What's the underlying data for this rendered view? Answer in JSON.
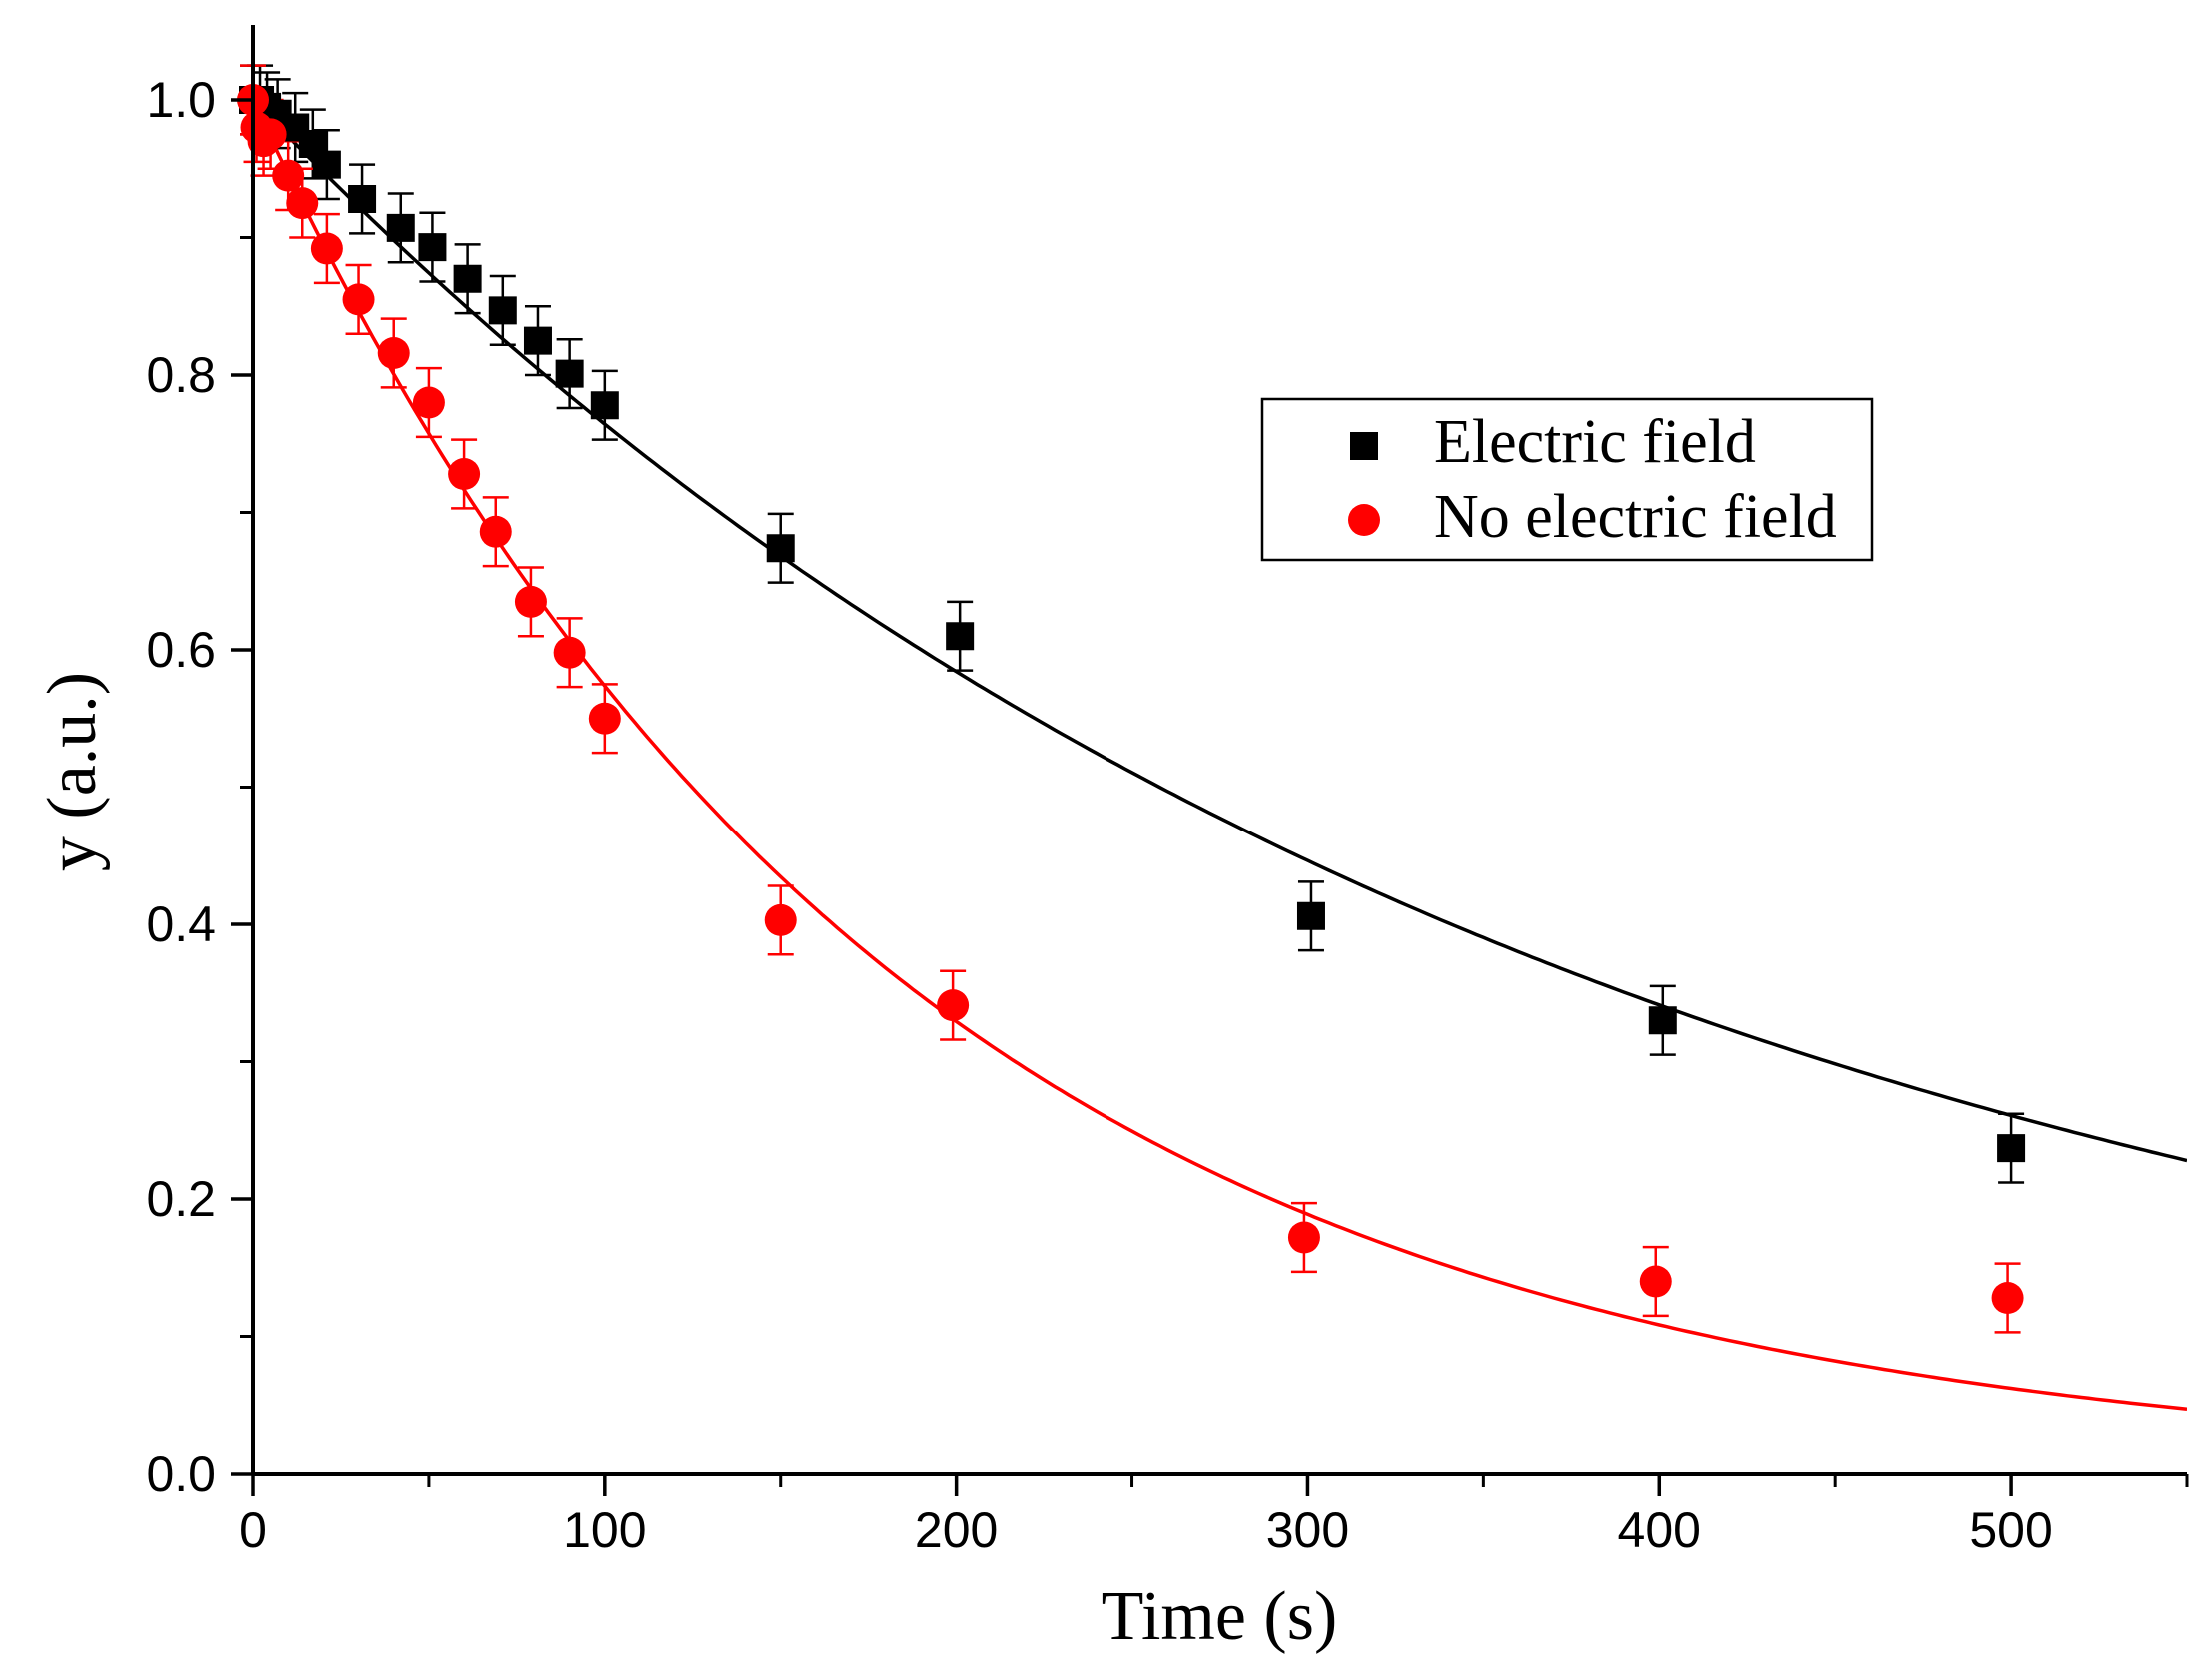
{
  "chart_data": {
    "type": "scatter",
    "title": "",
    "xlabel": "Time (s)",
    "ylabel": "y (a.u.)",
    "xlim": [
      0,
      550
    ],
    "ylim": [
      0,
      1.0
    ],
    "x_major_ticks": [
      0,
      100,
      200,
      300,
      400,
      500
    ],
    "x_minor_ticks": [
      50,
      150,
      250,
      350,
      450,
      550
    ],
    "x_tick_labels": [
      "0",
      "100",
      "200",
      "300",
      "400",
      "500"
    ],
    "y_major_ticks": [
      0,
      0.2,
      0.4,
      0.6,
      0.8,
      1.0
    ],
    "y_minor_ticks": [
      0.1,
      0.3,
      0.5,
      0.7,
      0.9
    ],
    "y_tick_labels": [
      "0.0",
      "0.2",
      "0.4",
      "0.6",
      "0.8",
      "1.0"
    ],
    "legend_position": "upper-right",
    "series": [
      {
        "name": "Electric field",
        "marker": "square",
        "color": "#000000",
        "error": 0.025,
        "fit": {
          "model": "exponential",
          "tau": 372
        },
        "points": [
          {
            "x": 0,
            "y": 1.0
          },
          {
            "x": 2,
            "y": 1.0
          },
          {
            "x": 4,
            "y": 0.995
          },
          {
            "x": 7,
            "y": 0.99
          },
          {
            "x": 12,
            "y": 0.98
          },
          {
            "x": 17,
            "y": 0.968
          },
          {
            "x": 21,
            "y": 0.953
          },
          {
            "x": 31,
            "y": 0.928
          },
          {
            "x": 42,
            "y": 0.907
          },
          {
            "x": 51,
            "y": 0.893
          },
          {
            "x": 61,
            "y": 0.87
          },
          {
            "x": 71,
            "y": 0.847
          },
          {
            "x": 81,
            "y": 0.825
          },
          {
            "x": 90,
            "y": 0.801
          },
          {
            "x": 100,
            "y": 0.778
          },
          {
            "x": 150,
            "y": 0.674
          },
          {
            "x": 201,
            "y": 0.61
          },
          {
            "x": 301,
            "y": 0.406
          },
          {
            "x": 401,
            "y": 0.33
          },
          {
            "x": 500,
            "y": 0.237
          }
        ]
      },
      {
        "name": "No electric field",
        "marker": "circle",
        "color": "#ff0000",
        "error": 0.025,
        "fit": {
          "model": "exponential",
          "tau": 180
        },
        "points": [
          {
            "x": 0,
            "y": 1.0
          },
          {
            "x": 1,
            "y": 0.98
          },
          {
            "x": 3,
            "y": 0.97
          },
          {
            "x": 5,
            "y": 0.975
          },
          {
            "x": 10,
            "y": 0.945
          },
          {
            "x": 14,
            "y": 0.925
          },
          {
            "x": 21,
            "y": 0.892
          },
          {
            "x": 30,
            "y": 0.855
          },
          {
            "x": 40,
            "y": 0.816
          },
          {
            "x": 50,
            "y": 0.78
          },
          {
            "x": 60,
            "y": 0.728
          },
          {
            "x": 69,
            "y": 0.686
          },
          {
            "x": 79,
            "y": 0.635
          },
          {
            "x": 90,
            "y": 0.598
          },
          {
            "x": 100,
            "y": 0.55
          },
          {
            "x": 150,
            "y": 0.403
          },
          {
            "x": 199,
            "y": 0.341
          },
          {
            "x": 299,
            "y": 0.172
          },
          {
            "x": 399,
            "y": 0.14
          },
          {
            "x": 499,
            "y": 0.128
          }
        ]
      }
    ]
  }
}
